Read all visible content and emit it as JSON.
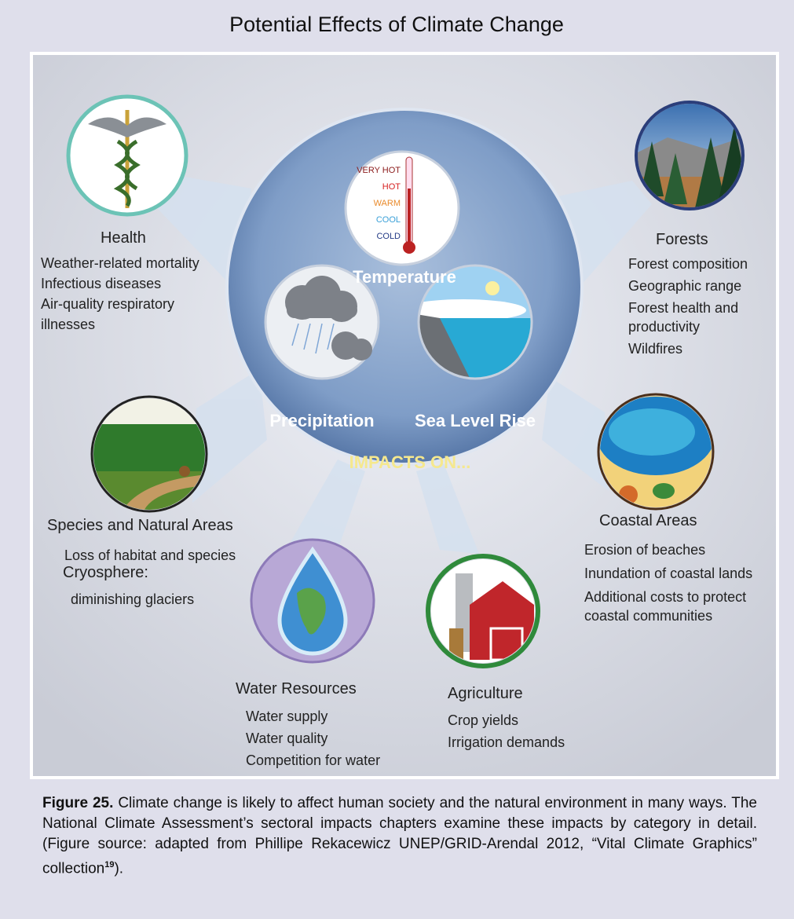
{
  "title": "Potential Effects of Climate Change",
  "drivers": [
    {
      "label": "Temperature"
    },
    {
      "label": "Precipitation"
    },
    {
      "label": "Sea Level Rise"
    }
  ],
  "thermometer_scale": [
    "VERY HOT",
    "HOT",
    "WARM",
    "COOL",
    "COLD"
  ],
  "impacts_label": "IMPACTS ON...",
  "sectors": [
    {
      "title": "Health",
      "items": [
        "Weather-related mortality",
        "Infectious diseases",
        "Air-quality respiratory illnesses"
      ]
    },
    {
      "title": "Forests",
      "items": [
        "Forest composition",
        "Geographic range",
        "Forest health and productivity",
        "Wildfires"
      ]
    },
    {
      "title": "Species and Natural Areas",
      "items": [
        "Loss of habitat and species",
        "Cryosphere:",
        "diminishing glaciers"
      ]
    },
    {
      "title": "Coastal Areas",
      "items": [
        "Erosion of beaches",
        "Inundation of coastal lands",
        "Additional costs to protect coastal communities"
      ]
    },
    {
      "title": "Water Resources",
      "items": [
        "Water supply",
        "Water quality",
        "Competition for water"
      ]
    },
    {
      "title": "Agriculture",
      "items": [
        "Crop yields",
        "Irrigation demands"
      ]
    }
  ],
  "caption": {
    "label": "Figure 25.",
    "text": "Climate change is likely to affect human society and the natural environment in many ways. The National Climate Assessment’s sectoral impacts chapters examine these impacts by category in detail. (Figure source: adapted from Phillipe Rekacewicz UNEP/GRID-Arendal 2012, “Vital Climate Graphics” collection",
    "reference": "19",
    "end": ")."
  }
}
